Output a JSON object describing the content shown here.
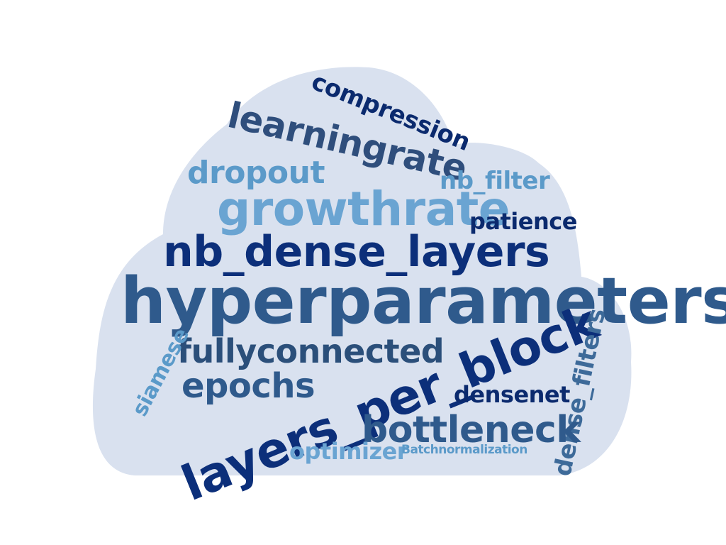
{
  "background_color": "#ffffff",
  "cloud_color": "#d9e1ef",
  "words": [
    {
      "text": "compression",
      "color": "#0b2a6e",
      "rotate": 22
    },
    {
      "text": "learningrate",
      "color": "#2f4e7c",
      "rotate": 13
    },
    {
      "text": "dropout",
      "color": "#5b9ac9",
      "rotate": 0
    },
    {
      "text": "nb_filter",
      "color": "#5b9ac9",
      "rotate": 0
    },
    {
      "text": "growthrate",
      "color": "#6aa4d2",
      "rotate": 0
    },
    {
      "text": "patience",
      "color": "#0b2a6e",
      "rotate": 0
    },
    {
      "text": "nb_dense_layers",
      "color": "#0c2f7a",
      "rotate": 0
    },
    {
      "text": "hyperparameters",
      "color": "#2f5a8c",
      "rotate": 0
    },
    {
      "text": "fullyconnected",
      "color": "#2b4f7a",
      "rotate": 0
    },
    {
      "text": "layers_per_block",
      "color": "#0c2f7a",
      "rotate": -22
    },
    {
      "text": "siamese",
      "color": "#5b9ac9",
      "rotate": -62
    },
    {
      "text": "epochs",
      "color": "#2f5a8c",
      "rotate": 0
    },
    {
      "text": "densenet",
      "color": "#0b2a6e",
      "rotate": 0
    },
    {
      "text": "dense_filters",
      "color": "#3d6a99",
      "rotate": -78
    },
    {
      "text": "bottleneck",
      "color": "#2f5a8c",
      "rotate": 0
    },
    {
      "text": "optimizer",
      "color": "#6aa4d2",
      "rotate": 0
    },
    {
      "text": "Batchnormalization",
      "color": "#5b9ac9",
      "rotate": 0
    }
  ]
}
